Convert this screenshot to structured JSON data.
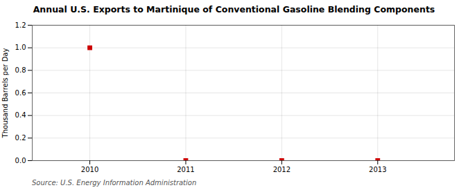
{
  "chart_data": {
    "type": "scatter",
    "title": "Annual U.S. Exports to Martinique of Conventional Gasoline Blending Components",
    "ylabel": "Thousand Barrels per Day",
    "source": "Source: U.S. Energy Information Administration",
    "x": [
      2010,
      2011,
      2012,
      2013
    ],
    "values": [
      1.0,
      0.0,
      0.0,
      0.0
    ],
    "color": "#cc0000",
    "marker": "square",
    "xlim": [
      2009.4,
      2013.8
    ],
    "xticks": [
      2010,
      2011,
      2012,
      2013
    ],
    "ylim": [
      0.0,
      1.2
    ],
    "yticks": [
      {
        "value": 0.0,
        "label": "0.0"
      },
      0.2,
      0.4,
      0.6,
      0.8,
      {
        "value": 1.0,
        "label": "1.0"
      },
      1.2
    ],
    "grid": true
  }
}
